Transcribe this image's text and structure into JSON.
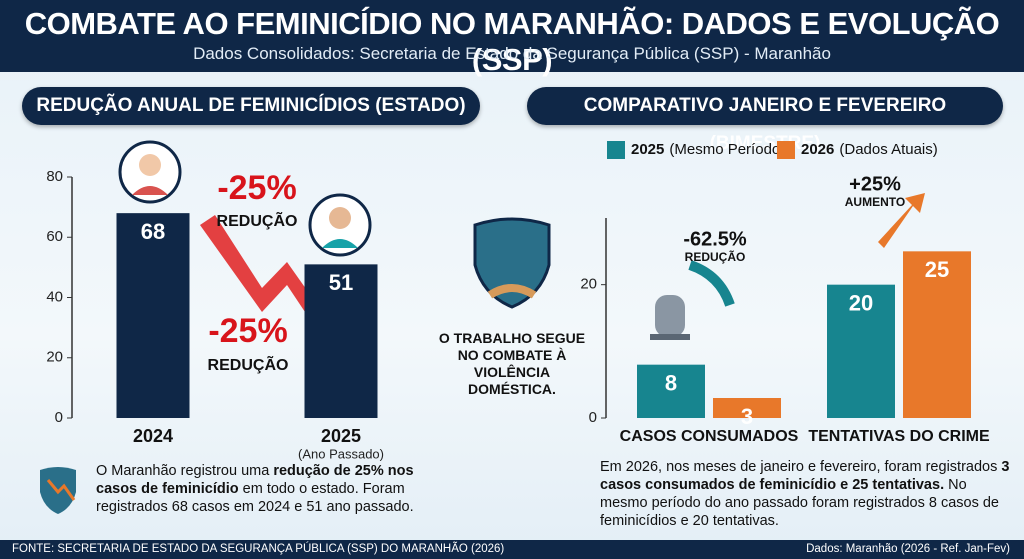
{
  "header": {
    "title": "COMBATE AO FEMINICÍDIO NO MARANHÃO: DADOS E EVOLUÇÃO (SSP)",
    "subtitle": "Dados Consolidados: Secretaria de Estado da Segurança Pública (SSP) - Maranhão"
  },
  "chart_data": [
    {
      "type": "bar",
      "title": "REDUÇÃO ANUAL DE FEMINICÍDIOS (ESTADO)",
      "categories": [
        "2024",
        "2025"
      ],
      "category_note": "(Ano Passado)",
      "values": [
        68,
        51
      ],
      "color": "#0f2747",
      "ylim": [
        0,
        80
      ],
      "yticks": [
        0,
        20,
        40,
        60,
        80
      ],
      "annotations": [
        {
          "value_text": "-25%",
          "caption": "REDUÇÃO"
        },
        {
          "value_text": "-25%",
          "caption": "REDUÇÃO"
        }
      ]
    },
    {
      "type": "grouped-bar",
      "title": "COMPARATIVO JANEIRO E FEVEREIRO (BIMESTRE)",
      "categories": [
        "CASOS CONSUMADOS",
        "TENTATIVAS DO CRIME"
      ],
      "series": [
        {
          "name": "2025",
          "name_note": "(Mesmo Período)",
          "color": "#17858f",
          "values": [
            8,
            20
          ]
        },
        {
          "name": "2026",
          "name_note": "(Dados Atuais)",
          "color": "#e8782a",
          "values": [
            3,
            25
          ]
        }
      ],
      "ylim": [
        0,
        30
      ],
      "yticks": [
        0,
        20
      ],
      "annotations": [
        {
          "value_text": "-62.5%",
          "caption": "REDUÇÃO"
        },
        {
          "value_text": "+25%",
          "caption": "AUMENTO"
        }
      ]
    }
  ],
  "center_message": "O TRABALHO SEGUE NO COMBATE À VIOLÊNCIA DOMÉSTICA.",
  "left_text": [
    {
      "text": "O Maranhão registrou uma ",
      "bold": false
    },
    {
      "text": "redução de 25% nos casos de feminicídio",
      "bold": true
    },
    {
      "text": " em todo o estado. Foram registrados 68 casos em 2024 e 51 ano passado.",
      "bold": false
    }
  ],
  "right_text": [
    {
      "text": "Em 2026, nos meses de janeiro e fevereiro, foram registrados ",
      "bold": false
    },
    {
      "text": "3 casos consumados de feminicídio e 25 tentativas.",
      "bold": true
    },
    {
      "text": " No mesmo período do ano passado foram registrados 8 casos de feminicídios e 20 tentativas.",
      "bold": false
    }
  ],
  "footer": {
    "source": "FONTE: SECRETARIA DE ESTADO DA SEGURANÇA PÚBLICA (SSP) DO MARANHÃO (2026)",
    "reference": "Dados: Maranhão (2026 - Ref. Jan-Fev)"
  }
}
